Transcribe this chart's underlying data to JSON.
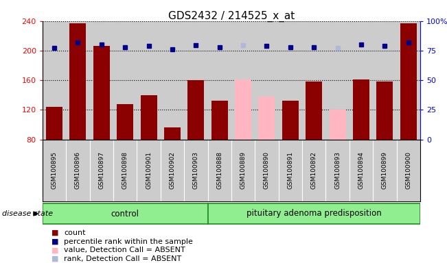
{
  "title": "GDS2432 / 214525_x_at",
  "samples": [
    "GSM100895",
    "GSM100896",
    "GSM100897",
    "GSM100898",
    "GSM100901",
    "GSM100902",
    "GSM100903",
    "GSM100888",
    "GSM100889",
    "GSM100890",
    "GSM100891",
    "GSM100892",
    "GSM100893",
    "GSM100894",
    "GSM100899",
    "GSM100900"
  ],
  "bar_values": [
    124,
    237,
    206,
    128,
    140,
    96,
    160,
    132,
    161,
    138,
    132,
    158,
    120,
    161,
    158,
    237
  ],
  "bar_absent": [
    false,
    false,
    false,
    false,
    false,
    false,
    false,
    false,
    true,
    true,
    false,
    false,
    true,
    false,
    false,
    false
  ],
  "percentile_values": [
    204,
    211,
    208,
    205,
    206,
    202,
    207,
    205,
    207,
    206,
    205,
    205,
    204,
    208,
    206,
    211
  ],
  "percentile_absent": [
    false,
    false,
    false,
    false,
    false,
    false,
    false,
    false,
    true,
    false,
    false,
    false,
    true,
    false,
    false,
    false
  ],
  "groups": [
    {
      "label": "control",
      "start": 0,
      "end": 7
    },
    {
      "label": "pituitary adenoma predisposition",
      "start": 7,
      "end": 16
    }
  ],
  "bar_color_present": "#8B0000",
  "bar_color_absent": "#FFB6C1",
  "dot_color_present": "#00008B",
  "dot_color_absent": "#B0B8D8",
  "ylim_left": [
    80,
    240
  ],
  "ylim_right": [
    0,
    100
  ],
  "yticks_left": [
    80,
    120,
    160,
    200,
    240
  ],
  "yticks_right": [
    0,
    25,
    50,
    75,
    100
  ],
  "ytick_labels_right": [
    "0",
    "25",
    "50",
    "75",
    "100%"
  ],
  "background_color": "#ffffff",
  "plot_bg_color": "#cccccc",
  "label_bg_color": "#cccccc",
  "gridline_color": "#000000",
  "disease_state_label": "disease state"
}
